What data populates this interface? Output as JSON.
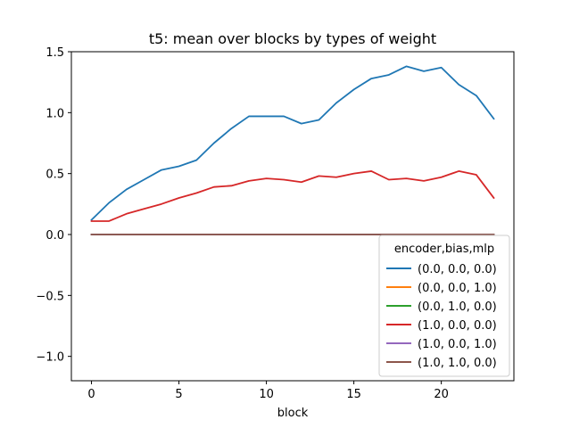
{
  "chart_data": {
    "type": "line",
    "title": "t5: mean over blocks by types of weight",
    "xlabel": "block",
    "ylabel": "",
    "xlim": [
      -1.15,
      24.15
    ],
    "ylim": [
      -1.2,
      1.5
    ],
    "xticks": [
      0,
      5,
      10,
      15,
      20
    ],
    "yticks": [
      -1.0,
      -0.5,
      0.0,
      0.5,
      1.0,
      1.5
    ],
    "ytick_labels": [
      "−1.0",
      "−0.5",
      "0.0",
      "0.5",
      "1.0",
      "1.5"
    ],
    "x": [
      0,
      1,
      2,
      3,
      4,
      5,
      6,
      7,
      8,
      9,
      10,
      11,
      12,
      13,
      14,
      15,
      16,
      17,
      18,
      19,
      20,
      21,
      22,
      23
    ],
    "grid": false,
    "legend": {
      "title": "encoder,bias,mlp",
      "placement": "lower-right"
    },
    "series": [
      {
        "name": "(0.0, 0.0, 0.0)",
        "color": "#1f77b4",
        "values": [
          0.12,
          0.26,
          0.37,
          0.45,
          0.53,
          0.56,
          0.61,
          0.75,
          0.87,
          0.97,
          0.97,
          0.97,
          0.91,
          0.94,
          1.08,
          1.19,
          1.28,
          1.31,
          1.38,
          1.34,
          1.37,
          1.23,
          1.14,
          0.95
        ]
      },
      {
        "name": "(0.0, 0.0, 1.0)",
        "color": "#ff7f0e",
        "values": [
          0.0,
          0.0,
          0.0,
          0.0,
          0.0,
          0.0,
          0.0,
          0.0,
          0.0,
          0.0,
          0.0,
          0.0,
          0.0,
          0.0,
          0.0,
          0.0,
          0.0,
          0.0,
          0.0,
          0.0,
          0.0,
          0.0,
          0.0,
          0.0
        ]
      },
      {
        "name": "(0.0, 1.0, 0.0)",
        "color": "#2ca02c",
        "values": [
          0.0,
          0.0,
          0.0,
          0.0,
          0.0,
          0.0,
          0.0,
          0.0,
          0.0,
          0.0,
          0.0,
          0.0,
          0.0,
          0.0,
          0.0,
          0.0,
          0.0,
          0.0,
          0.0,
          0.0,
          0.0,
          0.0,
          0.0,
          0.0
        ]
      },
      {
        "name": "(1.0, 0.0, 0.0)",
        "color": "#d62728",
        "values": [
          0.11,
          0.11,
          0.17,
          0.21,
          0.25,
          0.3,
          0.34,
          0.39,
          0.4,
          0.44,
          0.46,
          0.45,
          0.43,
          0.48,
          0.47,
          0.5,
          0.52,
          0.45,
          0.46,
          0.44,
          0.47,
          0.52,
          0.49,
          0.3
        ]
      },
      {
        "name": "(1.0, 0.0, 1.0)",
        "color": "#9467bd",
        "values": [
          0.0,
          0.0,
          0.0,
          0.0,
          0.0,
          0.0,
          0.0,
          0.0,
          0.0,
          0.0,
          0.0,
          0.0,
          0.0,
          0.0,
          0.0,
          0.0,
          0.0,
          0.0,
          0.0,
          0.0,
          0.0,
          0.0,
          0.0,
          0.0
        ]
      },
      {
        "name": "(1.0, 1.0, 0.0)",
        "color": "#8c564b",
        "values": [
          0.0,
          0.0,
          0.0,
          0.0,
          0.0,
          0.0,
          0.0,
          0.0,
          0.0,
          0.0,
          0.0,
          0.0,
          0.0,
          0.0,
          0.0,
          0.0,
          0.0,
          0.0,
          0.0,
          0.0,
          0.0,
          0.0,
          0.0,
          0.0
        ]
      }
    ]
  }
}
